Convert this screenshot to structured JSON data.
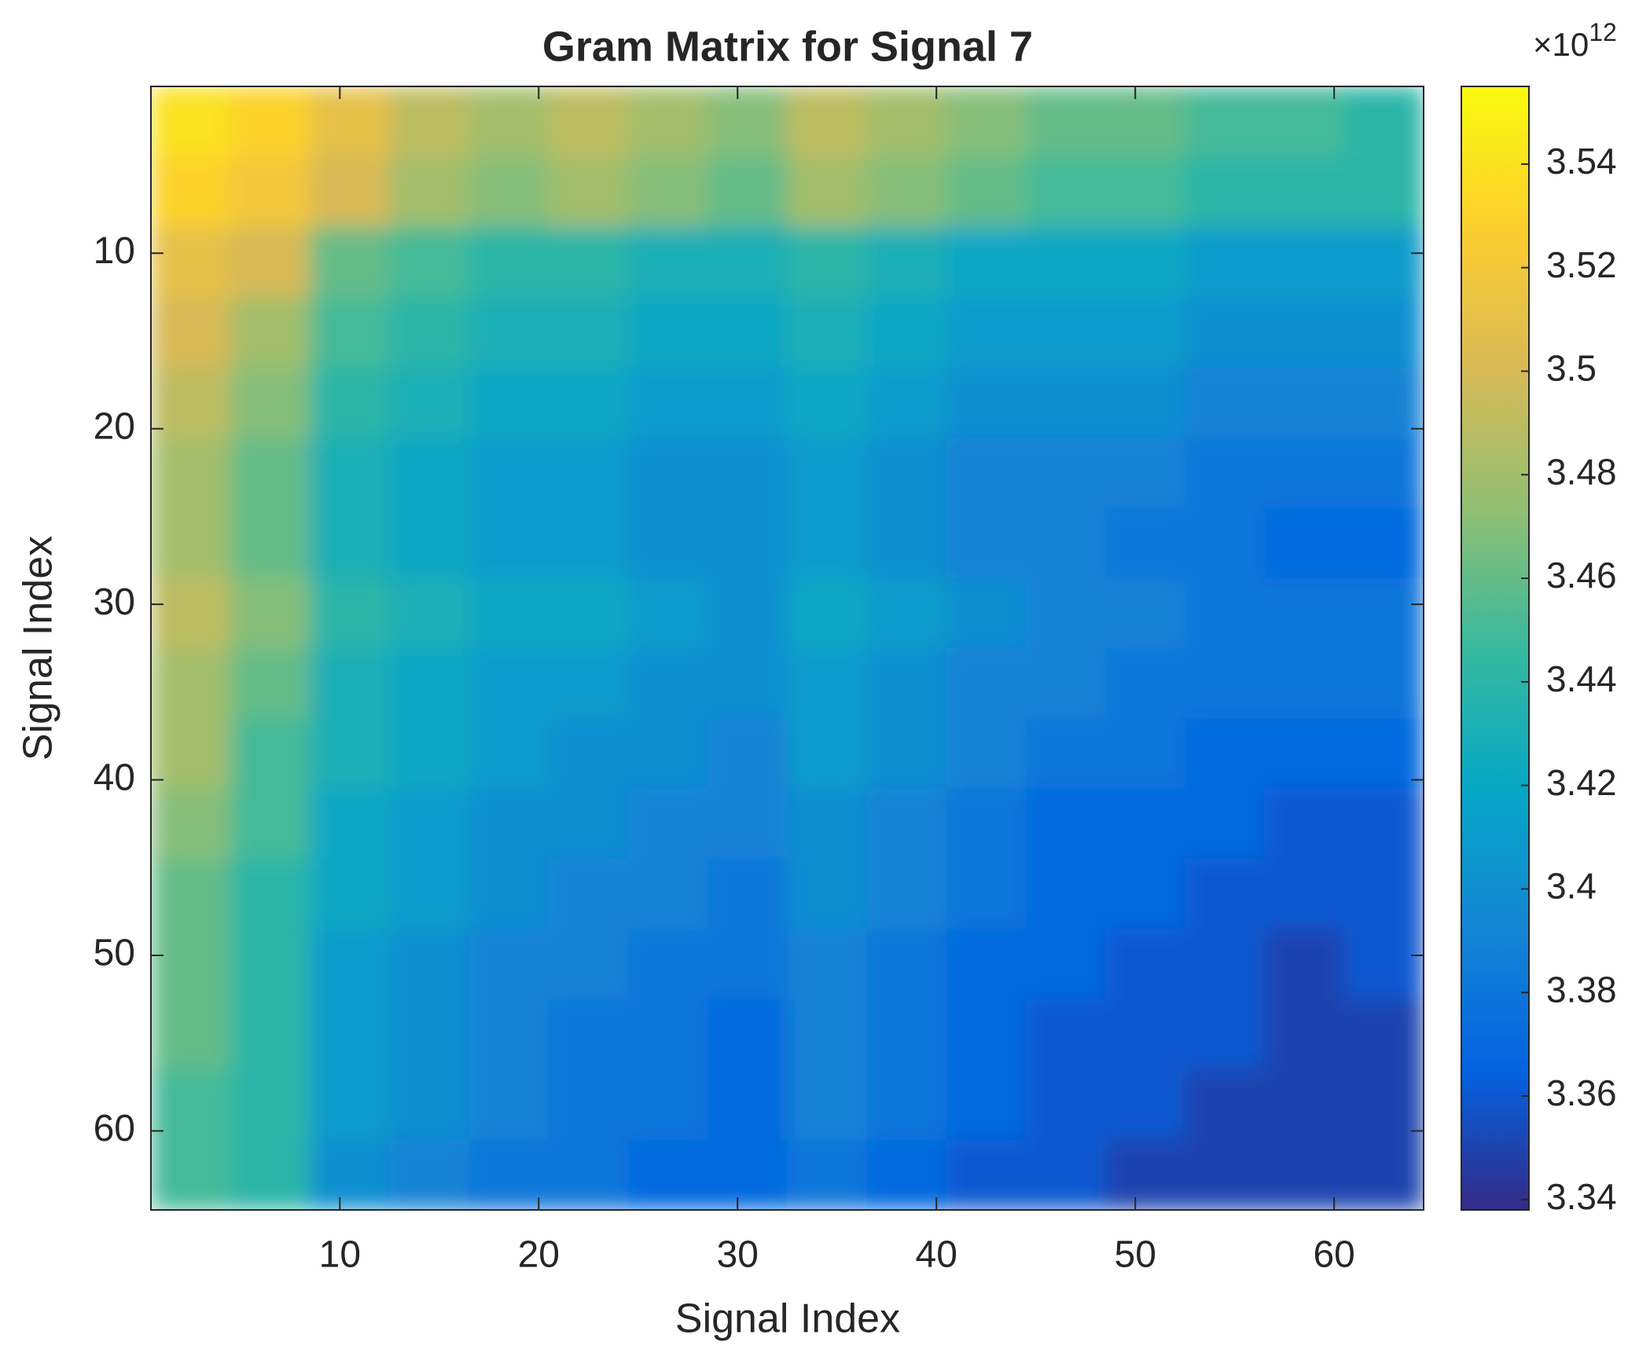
{
  "chart_data": {
    "type": "heatmap",
    "title": "Gram Matrix for Signal 7",
    "x_label": "Signal Index",
    "y_label": "Signal Index",
    "xbins": [
      0.5,
      4.5,
      8.5,
      12.5,
      16.5,
      20.5,
      24.5,
      28.5,
      32.5,
      36.5,
      40.5,
      44.5,
      48.5,
      52.5,
      56.5,
      60.5,
      64.5
    ],
    "ybins": [
      0.5,
      4.5,
      8.5,
      12.5,
      16.5,
      20.5,
      24.5,
      28.5,
      32.5,
      36.5,
      40.5,
      44.5,
      48.5,
      52.5,
      56.5,
      60.5,
      64.5
    ],
    "xlim": [
      0.5,
      64.5
    ],
    "ylim": [
      0.5,
      64.5
    ],
    "y_reversed": true,
    "xticks": [
      10,
      20,
      30,
      40,
      50,
      60
    ],
    "yticks": [
      10,
      20,
      30,
      40,
      50,
      60
    ],
    "values": [
      [
        3.54,
        3.53,
        3.51,
        3.49,
        3.48,
        3.49,
        3.48,
        3.47,
        3.49,
        3.48,
        3.47,
        3.46,
        3.46,
        3.45,
        3.45,
        3.44
      ],
      [
        3.53,
        3.52,
        3.5,
        3.48,
        3.47,
        3.48,
        3.47,
        3.46,
        3.48,
        3.47,
        3.46,
        3.45,
        3.45,
        3.44,
        3.44,
        3.44
      ],
      [
        3.51,
        3.5,
        3.46,
        3.45,
        3.44,
        3.44,
        3.43,
        3.43,
        3.44,
        3.43,
        3.42,
        3.42,
        3.42,
        3.41,
        3.41,
        3.41
      ],
      [
        3.5,
        3.48,
        3.45,
        3.44,
        3.43,
        3.43,
        3.42,
        3.42,
        3.43,
        3.42,
        3.41,
        3.41,
        3.41,
        3.4,
        3.4,
        3.4
      ],
      [
        3.49,
        3.47,
        3.44,
        3.43,
        3.42,
        3.42,
        3.41,
        3.41,
        3.42,
        3.41,
        3.4,
        3.4,
        3.4,
        3.39,
        3.39,
        3.39
      ],
      [
        3.48,
        3.46,
        3.43,
        3.42,
        3.41,
        3.41,
        3.4,
        3.4,
        3.41,
        3.4,
        3.39,
        3.39,
        3.39,
        3.38,
        3.38,
        3.38
      ],
      [
        3.48,
        3.46,
        3.43,
        3.42,
        3.41,
        3.41,
        3.4,
        3.4,
        3.41,
        3.4,
        3.39,
        3.39,
        3.38,
        3.38,
        3.37,
        3.37
      ],
      [
        3.49,
        3.47,
        3.44,
        3.43,
        3.42,
        3.42,
        3.41,
        3.4,
        3.42,
        3.41,
        3.4,
        3.39,
        3.39,
        3.38,
        3.38,
        3.38
      ],
      [
        3.48,
        3.46,
        3.43,
        3.42,
        3.41,
        3.41,
        3.4,
        3.4,
        3.41,
        3.4,
        3.39,
        3.39,
        3.38,
        3.38,
        3.38,
        3.38
      ],
      [
        3.48,
        3.45,
        3.43,
        3.42,
        3.41,
        3.4,
        3.4,
        3.39,
        3.41,
        3.4,
        3.39,
        3.38,
        3.38,
        3.37,
        3.37,
        3.37
      ],
      [
        3.47,
        3.45,
        3.42,
        3.41,
        3.4,
        3.4,
        3.39,
        3.39,
        3.4,
        3.39,
        3.38,
        3.37,
        3.37,
        3.37,
        3.36,
        3.36
      ],
      [
        3.46,
        3.44,
        3.42,
        3.41,
        3.4,
        3.39,
        3.39,
        3.38,
        3.4,
        3.39,
        3.38,
        3.37,
        3.37,
        3.36,
        3.36,
        3.36
      ],
      [
        3.46,
        3.44,
        3.41,
        3.4,
        3.39,
        3.39,
        3.38,
        3.38,
        3.39,
        3.38,
        3.37,
        3.37,
        3.36,
        3.36,
        3.35,
        3.36
      ],
      [
        3.46,
        3.44,
        3.41,
        3.4,
        3.39,
        3.38,
        3.38,
        3.37,
        3.39,
        3.38,
        3.37,
        3.36,
        3.36,
        3.36,
        3.35,
        3.35
      ],
      [
        3.45,
        3.44,
        3.41,
        3.4,
        3.39,
        3.38,
        3.38,
        3.37,
        3.39,
        3.38,
        3.37,
        3.36,
        3.36,
        3.35,
        3.35,
        3.35
      ],
      [
        3.45,
        3.44,
        3.4,
        3.39,
        3.38,
        3.38,
        3.37,
        3.37,
        3.38,
        3.37,
        3.36,
        3.36,
        3.35,
        3.35,
        3.35,
        3.35
      ]
    ],
    "clim": [
      3.338,
      3.555
    ],
    "cticks": [
      3.34,
      3.36,
      3.38,
      3.4,
      3.42,
      3.44,
      3.46,
      3.48,
      3.5,
      3.52,
      3.54
    ],
    "colorbar_multiplier": {
      "base": "×10",
      "exponent": "12"
    },
    "colormap": [
      "#352a87",
      "#0363e1",
      "#1485d4",
      "#06a7c6",
      "#38b99e",
      "#92bf73",
      "#d9ba56",
      "#fcce2e",
      "#f9fb0e"
    ]
  }
}
